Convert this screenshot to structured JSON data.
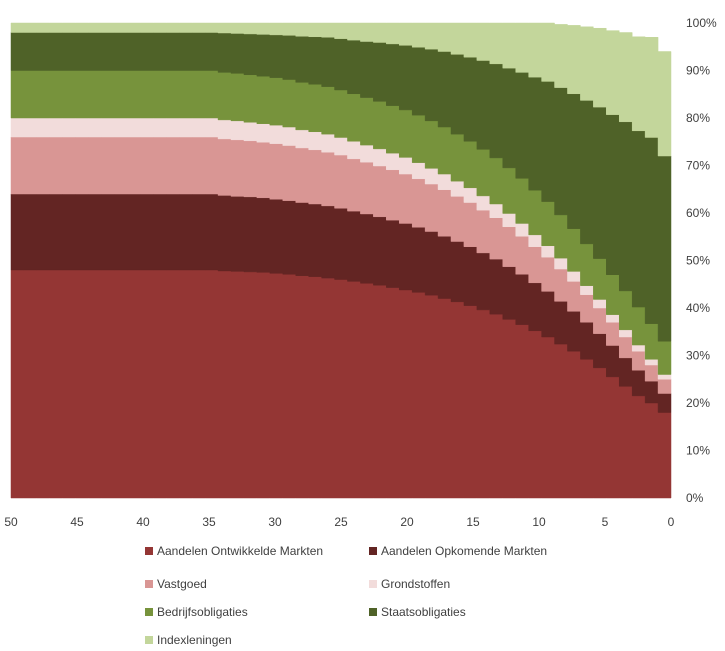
{
  "chart_data": {
    "type": "area",
    "stacked": true,
    "stepped": true,
    "x_axis": {
      "tick_labels": [
        "50",
        "45",
        "40",
        "35",
        "30",
        "25",
        "20",
        "15",
        "10",
        "5",
        "0"
      ],
      "min": 0,
      "max": 50,
      "reversed": true
    },
    "y_axis": {
      "position": "right",
      "tick_labels": [
        "0%",
        "10%",
        "20%",
        "30%",
        "40%",
        "50%",
        "60%",
        "70%",
        "80%",
        "90%",
        "100%"
      ],
      "min": 0,
      "max": 100
    },
    "grid": false,
    "legend_position": "bottom",
    "x": [
      50,
      49,
      48,
      47,
      46,
      45,
      44,
      43,
      42,
      41,
      40,
      39,
      38,
      37,
      36,
      35,
      34,
      33,
      32,
      31,
      30,
      29,
      28,
      27,
      26,
      25,
      24,
      23,
      22,
      21,
      20,
      19,
      18,
      17,
      16,
      15,
      14,
      13,
      12,
      11,
      10,
      9,
      8,
      7,
      6,
      5,
      4,
      3,
      2,
      1,
      0
    ],
    "series": [
      {
        "name": "Aandelen Ontwikkelde Markten",
        "color": "#943634",
        "values": [
          48,
          48,
          48,
          48,
          48,
          48,
          48,
          48,
          48,
          48,
          48,
          48,
          48,
          48,
          48,
          48,
          47.8,
          47.7,
          47.6,
          47.5,
          47.3,
          47.1,
          46.8,
          46.6,
          46.3,
          46,
          45.6,
          45.2,
          44.8,
          44.3,
          43.8,
          43.3,
          42.7,
          42,
          41.3,
          40.5,
          39.6,
          38.7,
          37.6,
          36.5,
          35.2,
          33.9,
          32.4,
          30.9,
          29.2,
          27.4,
          25.5,
          23.5,
          21.5,
          20,
          18
        ]
      },
      {
        "name": "Aandelen Opkomende Markten",
        "color": "#632523",
        "values": [
          16,
          16,
          16,
          16,
          16,
          16,
          16,
          16,
          16,
          16,
          16,
          16,
          16,
          16,
          16,
          16,
          15.9,
          15.8,
          15.8,
          15.7,
          15.6,
          15.5,
          15.4,
          15.3,
          15.2,
          15,
          14.8,
          14.6,
          14.4,
          14.2,
          14,
          13.7,
          13.4,
          13.1,
          12.7,
          12.4,
          12,
          11.6,
          11.1,
          10.6,
          10.1,
          9.6,
          9,
          8.4,
          7.8,
          7.2,
          6.6,
          6,
          5.4,
          4.6,
          4
        ]
      },
      {
        "name": "Vastgoed",
        "color": "#d99694",
        "values": [
          12,
          12,
          12,
          12,
          12,
          12,
          12,
          12,
          12,
          12,
          12,
          12,
          12,
          12,
          12,
          12,
          11.9,
          11.9,
          11.8,
          11.7,
          11.7,
          11.6,
          11.5,
          11.4,
          11.3,
          11.2,
          11,
          10.9,
          10.7,
          10.6,
          10.4,
          10.2,
          10,
          9.8,
          9.5,
          9.3,
          9,
          8.7,
          8.4,
          8,
          7.6,
          7.2,
          6.8,
          6.3,
          5.8,
          5.4,
          4.9,
          4.4,
          4,
          3.4,
          3
        ]
      },
      {
        "name": "Grondstoffen",
        "color": "#f2dcdb",
        "values": [
          4,
          4,
          4,
          4,
          4,
          4,
          4,
          4,
          4,
          4,
          4,
          4,
          4,
          4,
          4,
          4,
          4,
          4,
          3.9,
          3.9,
          3.9,
          3.9,
          3.8,
          3.8,
          3.8,
          3.7,
          3.7,
          3.6,
          3.6,
          3.5,
          3.5,
          3.4,
          3.3,
          3.3,
          3.2,
          3.1,
          3,
          2.9,
          2.8,
          2.7,
          2.5,
          2.4,
          2.3,
          2.1,
          1.9,
          1.8,
          1.6,
          1.5,
          1.3,
          1.2,
          1
        ]
      },
      {
        "name": "Bedrijfsobligaties",
        "color": "#77933c",
        "values": [
          10,
          10,
          10,
          10,
          10,
          10,
          10,
          10,
          10,
          10,
          10,
          10,
          10,
          10,
          10,
          10,
          10,
          10,
          10,
          10,
          10,
          10,
          10,
          10,
          10,
          10,
          10,
          10,
          10,
          10,
          10,
          10,
          10,
          9.9,
          9.9,
          9.8,
          9.8,
          9.7,
          9.6,
          9.5,
          9.4,
          9.3,
          9.1,
          9,
          8.8,
          8.6,
          8.4,
          8.2,
          8,
          7.5,
          7
        ]
      },
      {
        "name": "Staatsobligaties",
        "color": "#4f6228",
        "values": [
          8,
          8,
          8,
          8,
          8,
          8,
          8,
          8,
          8,
          8,
          8,
          8,
          8,
          8,
          8,
          8,
          8.3,
          8.4,
          8.6,
          8.8,
          9,
          9.3,
          9.7,
          10,
          10.4,
          10.8,
          11.3,
          11.8,
          12.4,
          13,
          13.6,
          14.3,
          15.1,
          15.9,
          16.8,
          17.7,
          18.7,
          19.8,
          21,
          22.3,
          23.8,
          25.3,
          26.8,
          28.4,
          30.2,
          31.9,
          33.7,
          35.6,
          37.1,
          39.2,
          39
        ]
      },
      {
        "name": "Indexleningen",
        "color": "#c3d69b",
        "values": [
          2,
          2,
          2,
          2,
          2,
          2,
          2,
          2,
          2,
          2,
          2,
          2,
          2,
          2,
          2,
          2,
          2.1,
          2.2,
          2.3,
          2.4,
          2.5,
          2.6,
          2.8,
          2.9,
          3,
          3.3,
          3.6,
          3.9,
          4.1,
          4.4,
          4.7,
          5.1,
          5.5,
          6,
          6.6,
          7.2,
          7.9,
          8.6,
          9.5,
          10.4,
          11.4,
          12.3,
          13.3,
          14.4,
          15.5,
          16.6,
          17.7,
          18.8,
          19.8,
          21.1,
          22
        ]
      }
    ]
  },
  "legend": [
    {
      "label": "Aandelen Ontwikkelde Markten",
      "color": "#943634"
    },
    {
      "label": "Aandelen Opkomende Markten",
      "color": "#632523"
    },
    {
      "label": "Vastgoed",
      "color": "#d99694"
    },
    {
      "label": "Grondstoffen",
      "color": "#f2dcdb"
    },
    {
      "label": "Bedrijfsobligaties",
      "color": "#77933c"
    },
    {
      "label": "Staatsobligaties",
      "color": "#4f6228"
    },
    {
      "label": "Indexleningen",
      "color": "#c3d69b"
    }
  ]
}
